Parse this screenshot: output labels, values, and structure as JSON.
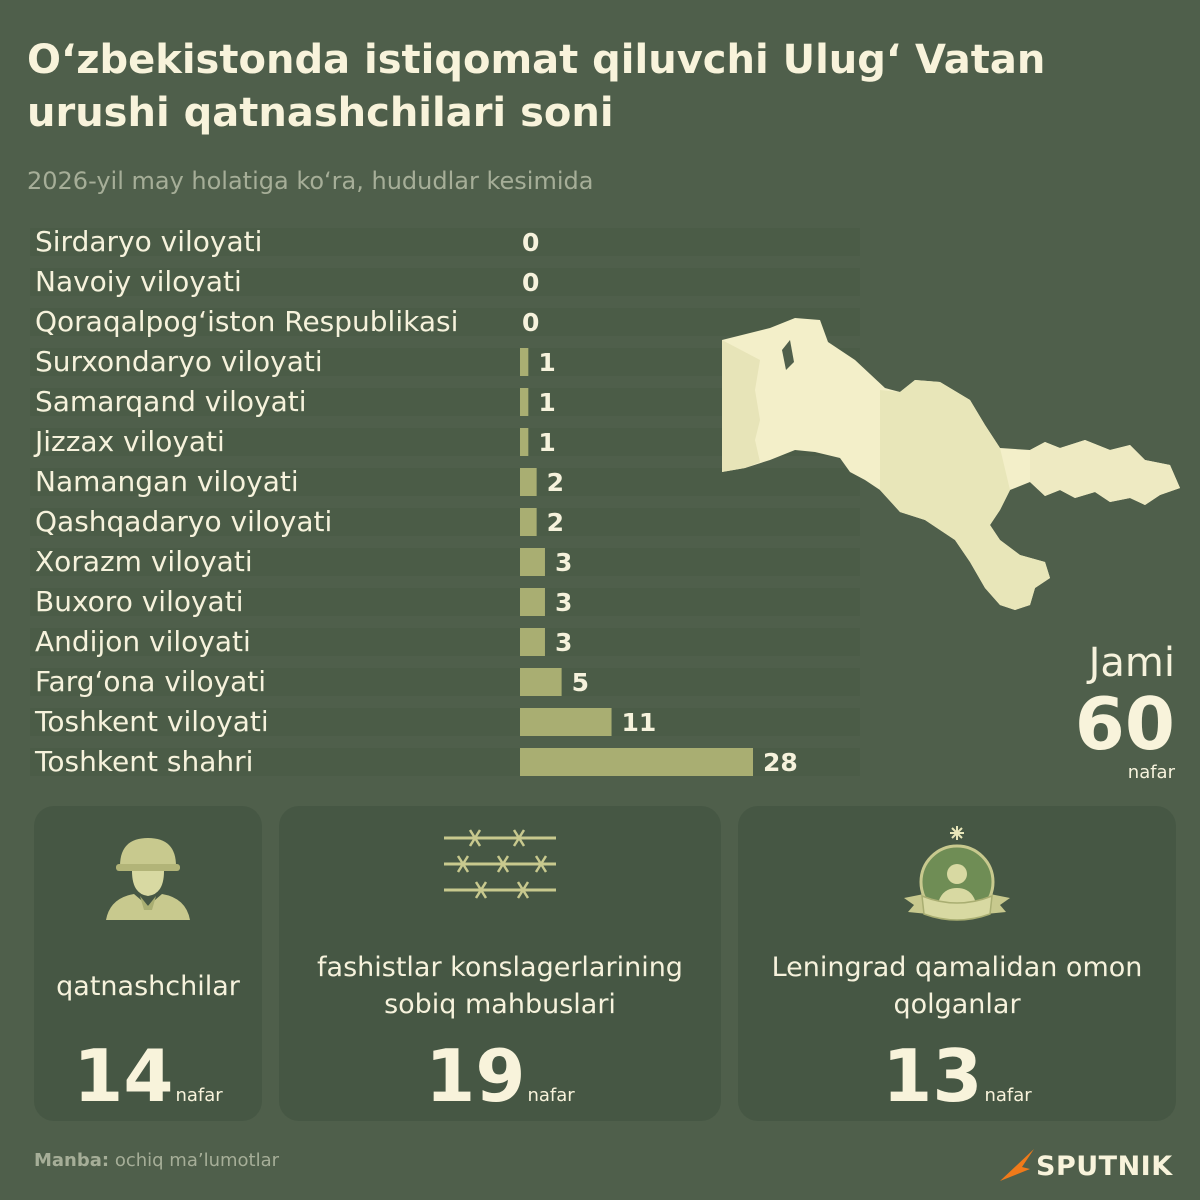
{
  "title": "O‘zbekistonda istiqomat qiluvchi Ulug‘ Vatan urushi qatnashchilari soni",
  "subtitle": "2026-yil may holatiga ko‘ra, hududlar kesimida",
  "chart_data": {
    "type": "bar",
    "orientation": "horizontal",
    "categories": [
      "Sirdaryo viloyati",
      "Navoiy viloyati",
      "Qoraqalpog‘iston Respublikasi",
      "Surxondaryo viloyati",
      "Samarqand viloyati",
      "Jizzax viloyati",
      "Namangan viloyati",
      "Qashqadaryo viloyati",
      "Xorazm viloyati",
      "Buxoro viloyati",
      "Andijon viloyati",
      "Farg‘ona viloyati",
      "Toshkent viloyati",
      "Toshkent shahri"
    ],
    "values": [
      0,
      0,
      0,
      1,
      1,
      1,
      2,
      2,
      3,
      3,
      3,
      5,
      11,
      28
    ],
    "xlim": [
      0,
      28
    ],
    "grid": false,
    "legend": "none",
    "colors": {
      "bar": "#a9ae72",
      "track": "#485a46",
      "label": "#f6f2dc"
    }
  },
  "total": {
    "label": "Jami",
    "value": "60",
    "unit": "nafar"
  },
  "cards": [
    {
      "label": "qatnashchilar",
      "value": "14",
      "unit": "nafar",
      "icon": "soldier-icon"
    },
    {
      "label": "fashistlar konslagerlarining sobiq mahbuslari",
      "value": "19",
      "unit": "nafar",
      "icon": "barbed-wire-icon"
    },
    {
      "label": "Leningrad qamalidan omon qolganlar",
      "value": "13",
      "unit": "nafar",
      "icon": "survivor-medal-icon"
    }
  ],
  "source": {
    "prefix": "Manba:",
    "text": "ochiq ma’lumotlar"
  },
  "logo": {
    "text": "SPUTNIK"
  },
  "colors": {
    "background": "#4f5f4b",
    "card": "#465744",
    "accent": "#a9ae72",
    "map": "#f3efc9",
    "logo": "#f07a1a"
  }
}
